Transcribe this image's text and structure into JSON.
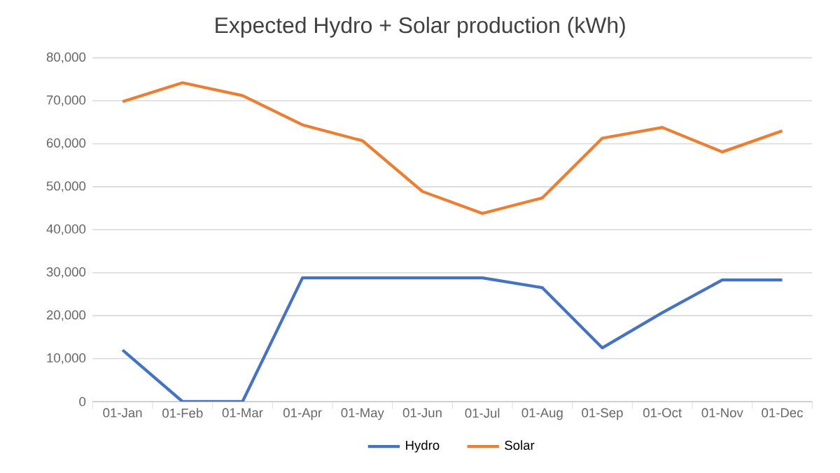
{
  "chart_data": {
    "type": "line",
    "title": "Expected Hydro + Solar production  (kWh)",
    "categories": [
      "01-Jan",
      "01-Feb",
      "01-Mar",
      "01-Apr",
      "01-May",
      "01-Jun",
      "01-Jul",
      "01-Aug",
      "01-Sep",
      "01-Oct",
      "01-Nov",
      "01-Dec"
    ],
    "series": [
      {
        "name": "Hydro",
        "color": "#4472c4",
        "values": [
          12000,
          0,
          0,
          28800,
          28800,
          28800,
          28800,
          26500,
          12500,
          20700,
          28300,
          28300
        ]
      },
      {
        "name": "Solar",
        "color": "#ed7d31",
        "values": [
          69800,
          74200,
          71200,
          64400,
          60700,
          48900,
          43800,
          47400,
          61300,
          63800,
          58100,
          63000
        ]
      }
    ],
    "ylim": [
      0,
      80000
    ],
    "yticks": [
      {
        "value": 0,
        "label": "0"
      },
      {
        "value": 10000,
        "label": "10,000"
      },
      {
        "value": 20000,
        "label": "20,000"
      },
      {
        "value": 30000,
        "label": "30,000"
      },
      {
        "value": 40000,
        "label": "40,000"
      },
      {
        "value": 50000,
        "label": "50,000"
      },
      {
        "value": 60000,
        "label": "60,000"
      },
      {
        "value": 70000,
        "label": "70,000"
      },
      {
        "value": 80000,
        "label": "80,000"
      }
    ],
    "grid": "y",
    "legend": "bottom",
    "marker": "none",
    "line_style": "solid"
  }
}
